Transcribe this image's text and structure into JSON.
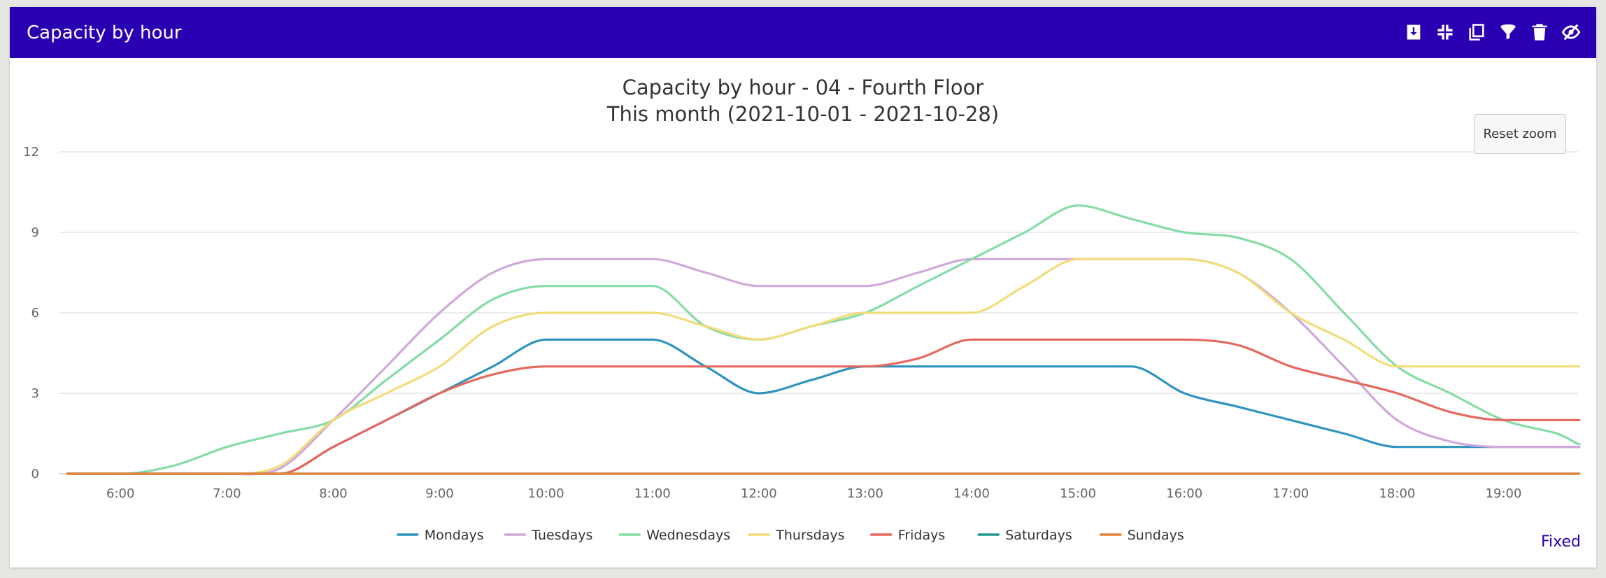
{
  "header": {
    "title": "Capacity by hour",
    "tools": [
      {
        "name": "download-icon"
      },
      {
        "name": "compress-icon"
      },
      {
        "name": "copy-icon"
      },
      {
        "name": "filter-icon"
      },
      {
        "name": "trash-icon"
      },
      {
        "name": "eye-slash-icon"
      }
    ]
  },
  "reset_zoom": "Reset zoom",
  "footer_link": "Fixed",
  "colors": {
    "header": "#2a00b3",
    "grid": "#e6e6e6",
    "axis_text": "#666666"
  },
  "chart_data": {
    "type": "line",
    "title": "Capacity by hour - 04 - Fourth Floor",
    "subtitle": "This month (2021-10-01 - 2021-10-28)",
    "xlabel": "",
    "ylabel": "",
    "x": [
      5.5,
      6,
      6.5,
      7,
      7.5,
      8,
      8.5,
      9,
      9.5,
      10,
      10.5,
      11,
      11.5,
      12,
      12.5,
      13,
      13.5,
      14,
      14.5,
      15,
      15.5,
      16,
      16.5,
      17,
      17.5,
      18,
      18.5,
      19,
      19.5,
      19.75
    ],
    "x_ticks": [
      "6:00",
      "7:00",
      "8:00",
      "9:00",
      "10:00",
      "11:00",
      "12:00",
      "13:00",
      "14:00",
      "15:00",
      "16:00",
      "17:00",
      "18:00",
      "19:00"
    ],
    "xlim": [
      5.42,
      19.7
    ],
    "ylim": [
      0,
      12
    ],
    "y_ticks": [
      "0",
      "3",
      "6",
      "9",
      "12"
    ],
    "grid": true,
    "legend": "bottom-center",
    "series": [
      {
        "name": "Mondays",
        "color": "#2f94bf",
        "values": [
          0,
          0,
          0,
          0,
          0,
          1,
          2,
          3,
          4,
          5,
          5,
          5,
          4,
          3,
          3.5,
          4,
          4,
          4,
          4,
          4,
          4,
          3,
          2.5,
          2,
          1.5,
          1,
          1,
          1,
          1,
          1
        ]
      },
      {
        "name": "Tuesdays",
        "color": "#d0a8dc",
        "values": [
          0,
          0,
          0,
          0,
          0.2,
          2,
          4,
          6,
          7.5,
          8,
          8,
          8,
          7.5,
          7,
          7,
          7,
          7.5,
          8,
          8,
          8,
          8,
          8,
          7.5,
          6,
          4,
          2,
          1.2,
          1,
          1,
          1
        ]
      },
      {
        "name": "Wednesdays",
        "color": "#86dca6",
        "values": [
          0,
          0,
          0.3,
          1,
          1.5,
          2,
          3.5,
          5,
          6.5,
          7,
          7,
          7,
          5.5,
          5,
          5.5,
          6,
          7,
          8,
          9,
          10,
          9.5,
          9,
          8.8,
          8,
          6,
          4,
          3,
          2,
          1.5,
          1.1
        ]
      },
      {
        "name": "Thursdays",
        "color": "#f2dc7a",
        "values": [
          0,
          0,
          0,
          0,
          0.3,
          2,
          3,
          4,
          5.5,
          6,
          6,
          6,
          5.5,
          5,
          5.5,
          6,
          6,
          6,
          7,
          8,
          8,
          8,
          7.5,
          6,
          5,
          4,
          4,
          4,
          4,
          4
        ]
      },
      {
        "name": "Fridays",
        "color": "#e5695d",
        "values": [
          0,
          0,
          0,
          0,
          0,
          1,
          2,
          3,
          3.7,
          4,
          4,
          4,
          4,
          4,
          4,
          4,
          4.3,
          5,
          5,
          5,
          5,
          5,
          4.8,
          4,
          3.5,
          3,
          2.3,
          2,
          2,
          2
        ]
      },
      {
        "name": "Saturdays",
        "color": "#1f9a8a",
        "values": [
          0,
          0,
          0,
          0,
          0,
          0,
          0,
          0,
          0,
          0,
          0,
          0,
          0,
          0,
          0,
          0,
          0,
          0,
          0,
          0,
          0,
          0,
          0,
          0,
          0,
          0,
          0,
          0,
          0,
          0
        ]
      },
      {
        "name": "Sundays",
        "color": "#e6813a",
        "values": [
          0,
          0,
          0,
          0,
          0,
          0,
          0,
          0,
          0,
          0,
          0,
          0,
          0,
          0,
          0,
          0,
          0,
          0,
          0,
          0,
          0,
          0,
          0,
          0,
          0,
          0,
          0,
          0,
          0,
          0
        ]
      }
    ]
  }
}
